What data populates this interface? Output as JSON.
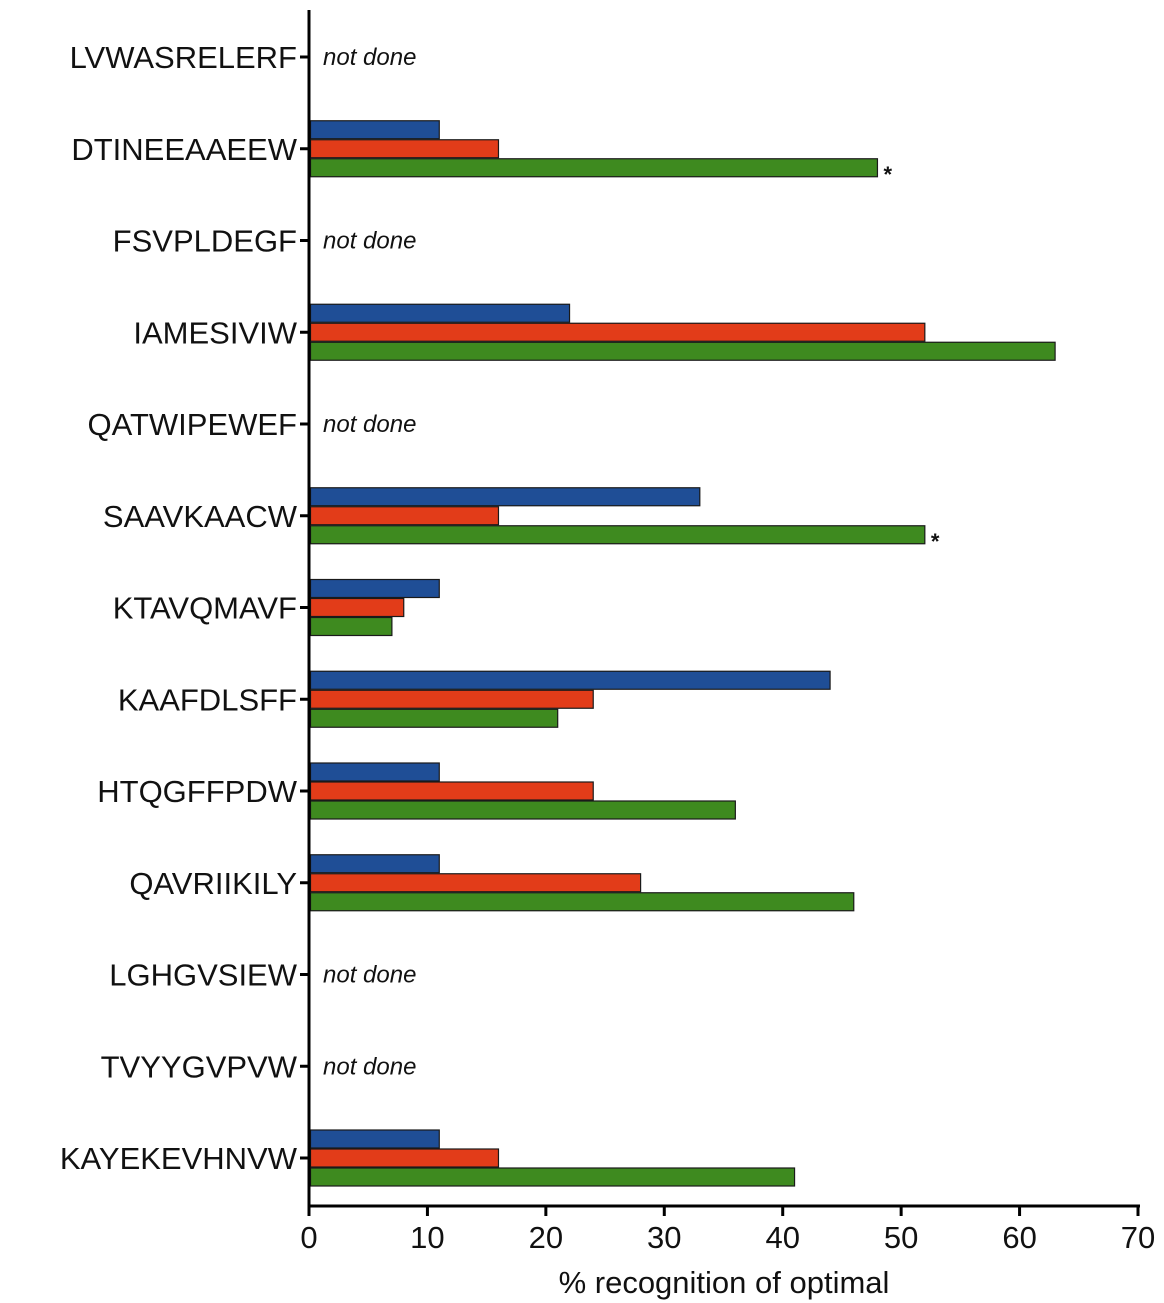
{
  "chart_data": {
    "type": "bar",
    "orientation": "horizontal",
    "xlabel": "% recognition of optimal",
    "xlim": [
      0,
      70
    ],
    "xticks": [
      0,
      10,
      20,
      30,
      40,
      50,
      60,
      70
    ],
    "categories": [
      "LVWASRELERF",
      "DTINEEAAEEW",
      "FSVPLDEGF",
      "IAMESIVIW",
      "QATWIPEWEF",
      "SAAVKAACW",
      "KTAVQMAVF",
      "KAAFDLSFF",
      "HTQGFFPDW",
      "QAVRIIKILY",
      "LGHGVSIEW",
      "TVYYGVPVW",
      "KAYEKEVHNVW"
    ],
    "not_done_label": "not done",
    "significance_marker": "*",
    "series": [
      {
        "color": "#1f4e96",
        "values": [
          null,
          11,
          null,
          22,
          null,
          33,
          11,
          44,
          11,
          11,
          null,
          null,
          11
        ]
      },
      {
        "color": "#e23c19",
        "values": [
          null,
          16,
          null,
          52,
          null,
          16,
          8,
          24,
          24,
          28,
          null,
          null,
          16
        ]
      },
      {
        "color": "#3e8a1f",
        "values": [
          null,
          48,
          null,
          63,
          null,
          52,
          7,
          21,
          36,
          46,
          null,
          null,
          41
        ]
      }
    ],
    "significant": [
      "DTINEEAAEEW",
      "SAAVKAACW"
    ],
    "grid": false,
    "legend": "none"
  }
}
